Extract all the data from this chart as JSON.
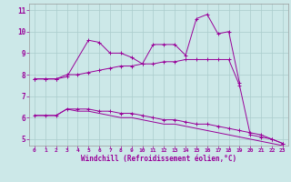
{
  "x_hours_main": [
    0,
    1,
    2,
    3,
    5,
    6,
    7,
    8,
    9,
    10,
    11,
    12,
    13,
    14,
    15,
    16,
    17,
    18,
    19
  ],
  "y_main": [
    7.8,
    7.8,
    7.8,
    7.9,
    9.6,
    9.5,
    9.0,
    9.0,
    8.8,
    8.5,
    9.4,
    9.4,
    9.4,
    8.9,
    10.6,
    10.8,
    9.9,
    10.0,
    7.6
  ],
  "x_hours_mid": [
    0,
    1,
    2,
    3,
    4,
    5,
    6,
    7,
    8,
    9,
    10,
    11,
    12,
    13,
    14,
    15,
    16,
    17,
    18,
    19,
    20,
    21,
    22,
    23
  ],
  "y_mid": [
    7.8,
    7.8,
    7.8,
    8.0,
    8.0,
    8.1,
    8.2,
    8.3,
    8.4,
    8.4,
    8.5,
    8.5,
    8.6,
    8.6,
    8.7,
    8.7,
    8.7,
    8.7,
    8.7,
    7.5,
    5.2,
    5.1,
    5.0,
    4.8
  ],
  "x_hours_low": [
    0,
    1,
    2,
    3,
    4,
    5,
    6,
    7,
    8,
    9,
    10,
    11,
    12,
    13,
    14,
    15,
    16,
    17,
    18,
    19,
    20,
    21,
    22,
    23
  ],
  "y_low1": [
    6.1,
    6.1,
    6.1,
    6.4,
    6.4,
    6.4,
    6.3,
    6.3,
    6.2,
    6.2,
    6.1,
    6.0,
    5.9,
    5.9,
    5.8,
    5.7,
    5.7,
    5.6,
    5.5,
    5.4,
    5.3,
    5.2,
    5.0,
    4.8
  ],
  "y_low2": [
    6.1,
    6.1,
    6.1,
    6.4,
    6.3,
    6.3,
    6.2,
    6.1,
    6.0,
    6.0,
    5.9,
    5.8,
    5.7,
    5.7,
    5.6,
    5.5,
    5.4,
    5.3,
    5.2,
    5.1,
    5.0,
    4.9,
    4.8,
    4.7
  ],
  "line_color": "#990099",
  "bg_color": "#cce8e8",
  "grid_color": "#aacccc",
  "xlabel": "Windchill (Refroidissement éolien,°C)",
  "xlim": [
    -0.5,
    23.5
  ],
  "ylim": [
    4.7,
    11.3
  ],
  "yticks": [
    5,
    6,
    7,
    8,
    9,
    10,
    11
  ],
  "xticks": [
    0,
    1,
    2,
    3,
    4,
    5,
    6,
    7,
    8,
    9,
    10,
    11,
    12,
    13,
    14,
    15,
    16,
    17,
    18,
    19,
    20,
    21,
    22,
    23
  ]
}
